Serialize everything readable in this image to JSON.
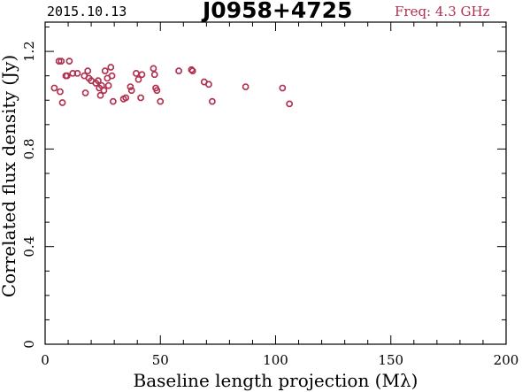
{
  "header": {
    "date": "2015.10.13",
    "source": "J0958+4725",
    "frequency": "Freq: 4.3 GHz"
  },
  "colors": {
    "accent": "#b0304f",
    "axes": "#000000"
  },
  "chart_data": {
    "type": "scatter",
    "title": "J0958+4725",
    "xlabel": "Baseline length projection (Mλ)",
    "ylabel": "Correlated flux density (Jy)",
    "xlim": [
      0,
      200
    ],
    "ylim": [
      0,
      1.32
    ],
    "xticks": [
      0,
      50,
      100,
      150,
      200
    ],
    "yticks": [
      0,
      0.4,
      0.8,
      1.2
    ],
    "xtick_labels": [
      "0",
      "50",
      "100",
      "150",
      "200"
    ],
    "ytick_labels": [
      "0",
      "0.4",
      "0.8",
      "1.2"
    ],
    "grid": false,
    "marker": "open-octagon",
    "series": [
      {
        "points": [
          [
            4,
            1.05
          ],
          [
            6,
            1.16
          ],
          [
            6.5,
            1.035
          ],
          [
            7,
            1.16
          ],
          [
            7.5,
            0.99
          ],
          [
            9,
            1.1
          ],
          [
            9.5,
            1.1
          ],
          [
            10.5,
            1.16
          ],
          [
            12,
            1.11
          ],
          [
            14,
            1.11
          ],
          [
            17,
            1.1
          ],
          [
            17.5,
            1.03
          ],
          [
            18.5,
            1.12
          ],
          [
            19,
            1.09
          ],
          [
            20,
            1.08
          ],
          [
            22,
            1.07
          ],
          [
            23,
            1.08
          ],
          [
            23.5,
            1.05
          ],
          [
            24,
            1.02
          ],
          [
            24.5,
            1.06
          ],
          [
            25.5,
            1.04
          ],
          [
            26,
            1.12
          ],
          [
            27,
            1.09
          ],
          [
            27.5,
            1.06
          ],
          [
            28.5,
            1.135
          ],
          [
            29,
            1.1
          ],
          [
            29.5,
            0.995
          ],
          [
            34,
            1.005
          ],
          [
            35,
            1.01
          ],
          [
            37,
            1.055
          ],
          [
            37.5,
            1.04
          ],
          [
            39.5,
            1.11
          ],
          [
            40.5,
            1.085
          ],
          [
            41.5,
            1.01
          ],
          [
            42,
            1.105
          ],
          [
            47,
            1.13
          ],
          [
            47.5,
            1.105
          ],
          [
            48,
            1.05
          ],
          [
            48.5,
            1.04
          ],
          [
            50,
            0.995
          ],
          [
            58,
            1.12
          ],
          [
            63.5,
            1.125
          ],
          [
            64,
            1.12
          ],
          [
            69,
            1.075
          ],
          [
            71,
            1.065
          ],
          [
            72.5,
            0.995
          ],
          [
            87,
            1.055
          ],
          [
            103,
            1.05
          ],
          [
            106,
            0.985
          ]
        ]
      }
    ]
  }
}
